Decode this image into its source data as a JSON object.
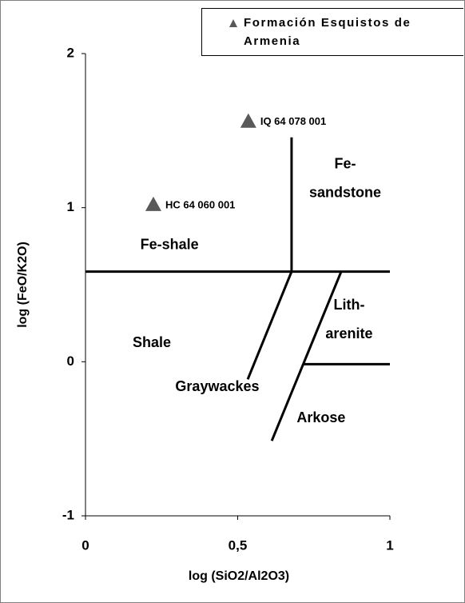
{
  "chart_data": {
    "type": "scatter",
    "x_label": "log (SiO2/Al2O3)",
    "y_label": "log (FeO/K2O)",
    "xlim": [
      0,
      1
    ],
    "ylim": [
      -1,
      2
    ],
    "xticks": [
      0,
      {
        "value": 0.5,
        "label": "0,5"
      },
      1
    ],
    "yticks": [
      -1,
      0,
      1,
      2
    ],
    "series": [
      {
        "name": "Formación Esquistos de Armenia",
        "color": "#595959",
        "marker": "triangle",
        "x": [
          0.535,
          0.223
        ],
        "values": [
          1.56,
          1.02
        ],
        "labels": [
          "IQ 64 078 001",
          "HC 64 060 001"
        ]
      }
    ],
    "lines": [
      {
        "x": [
          0,
          1
        ],
        "values": [
          0.585,
          0.585
        ]
      },
      {
        "x": [
          0.677,
          0.677
        ],
        "values": [
          0.585,
          1.456
        ]
      },
      {
        "x": [
          0.677,
          0.533
        ],
        "values": [
          0.585,
          -0.114
        ]
      },
      {
        "x": [
          0.84,
          0.612
        ],
        "values": [
          0.585,
          -0.513
        ]
      },
      {
        "x": [
          0.717,
          1
        ],
        "values": [
          -0.016,
          -0.016
        ]
      }
    ],
    "annotations": [
      {
        "lines": [
          "Fe-shale"
        ],
        "x": 0.276,
        "y": 0.756
      },
      {
        "lines": [
          "Fe-",
          "sandstone"
        ],
        "x": 0.853,
        "y": 1.28
      },
      {
        "lines": [
          "Lith-",
          "arenite"
        ],
        "x": 0.866,
        "y": 0.363
      },
      {
        "lines": [
          "Shale"
        ],
        "x": 0.218,
        "y": 0.119
      },
      {
        "lines": [
          "Graywackes"
        ],
        "x": 0.433,
        "y": -0.166
      },
      {
        "lines": [
          "Arkose"
        ],
        "x": 0.774,
        "y": -0.368
      }
    ],
    "legend": "top-right"
  }
}
